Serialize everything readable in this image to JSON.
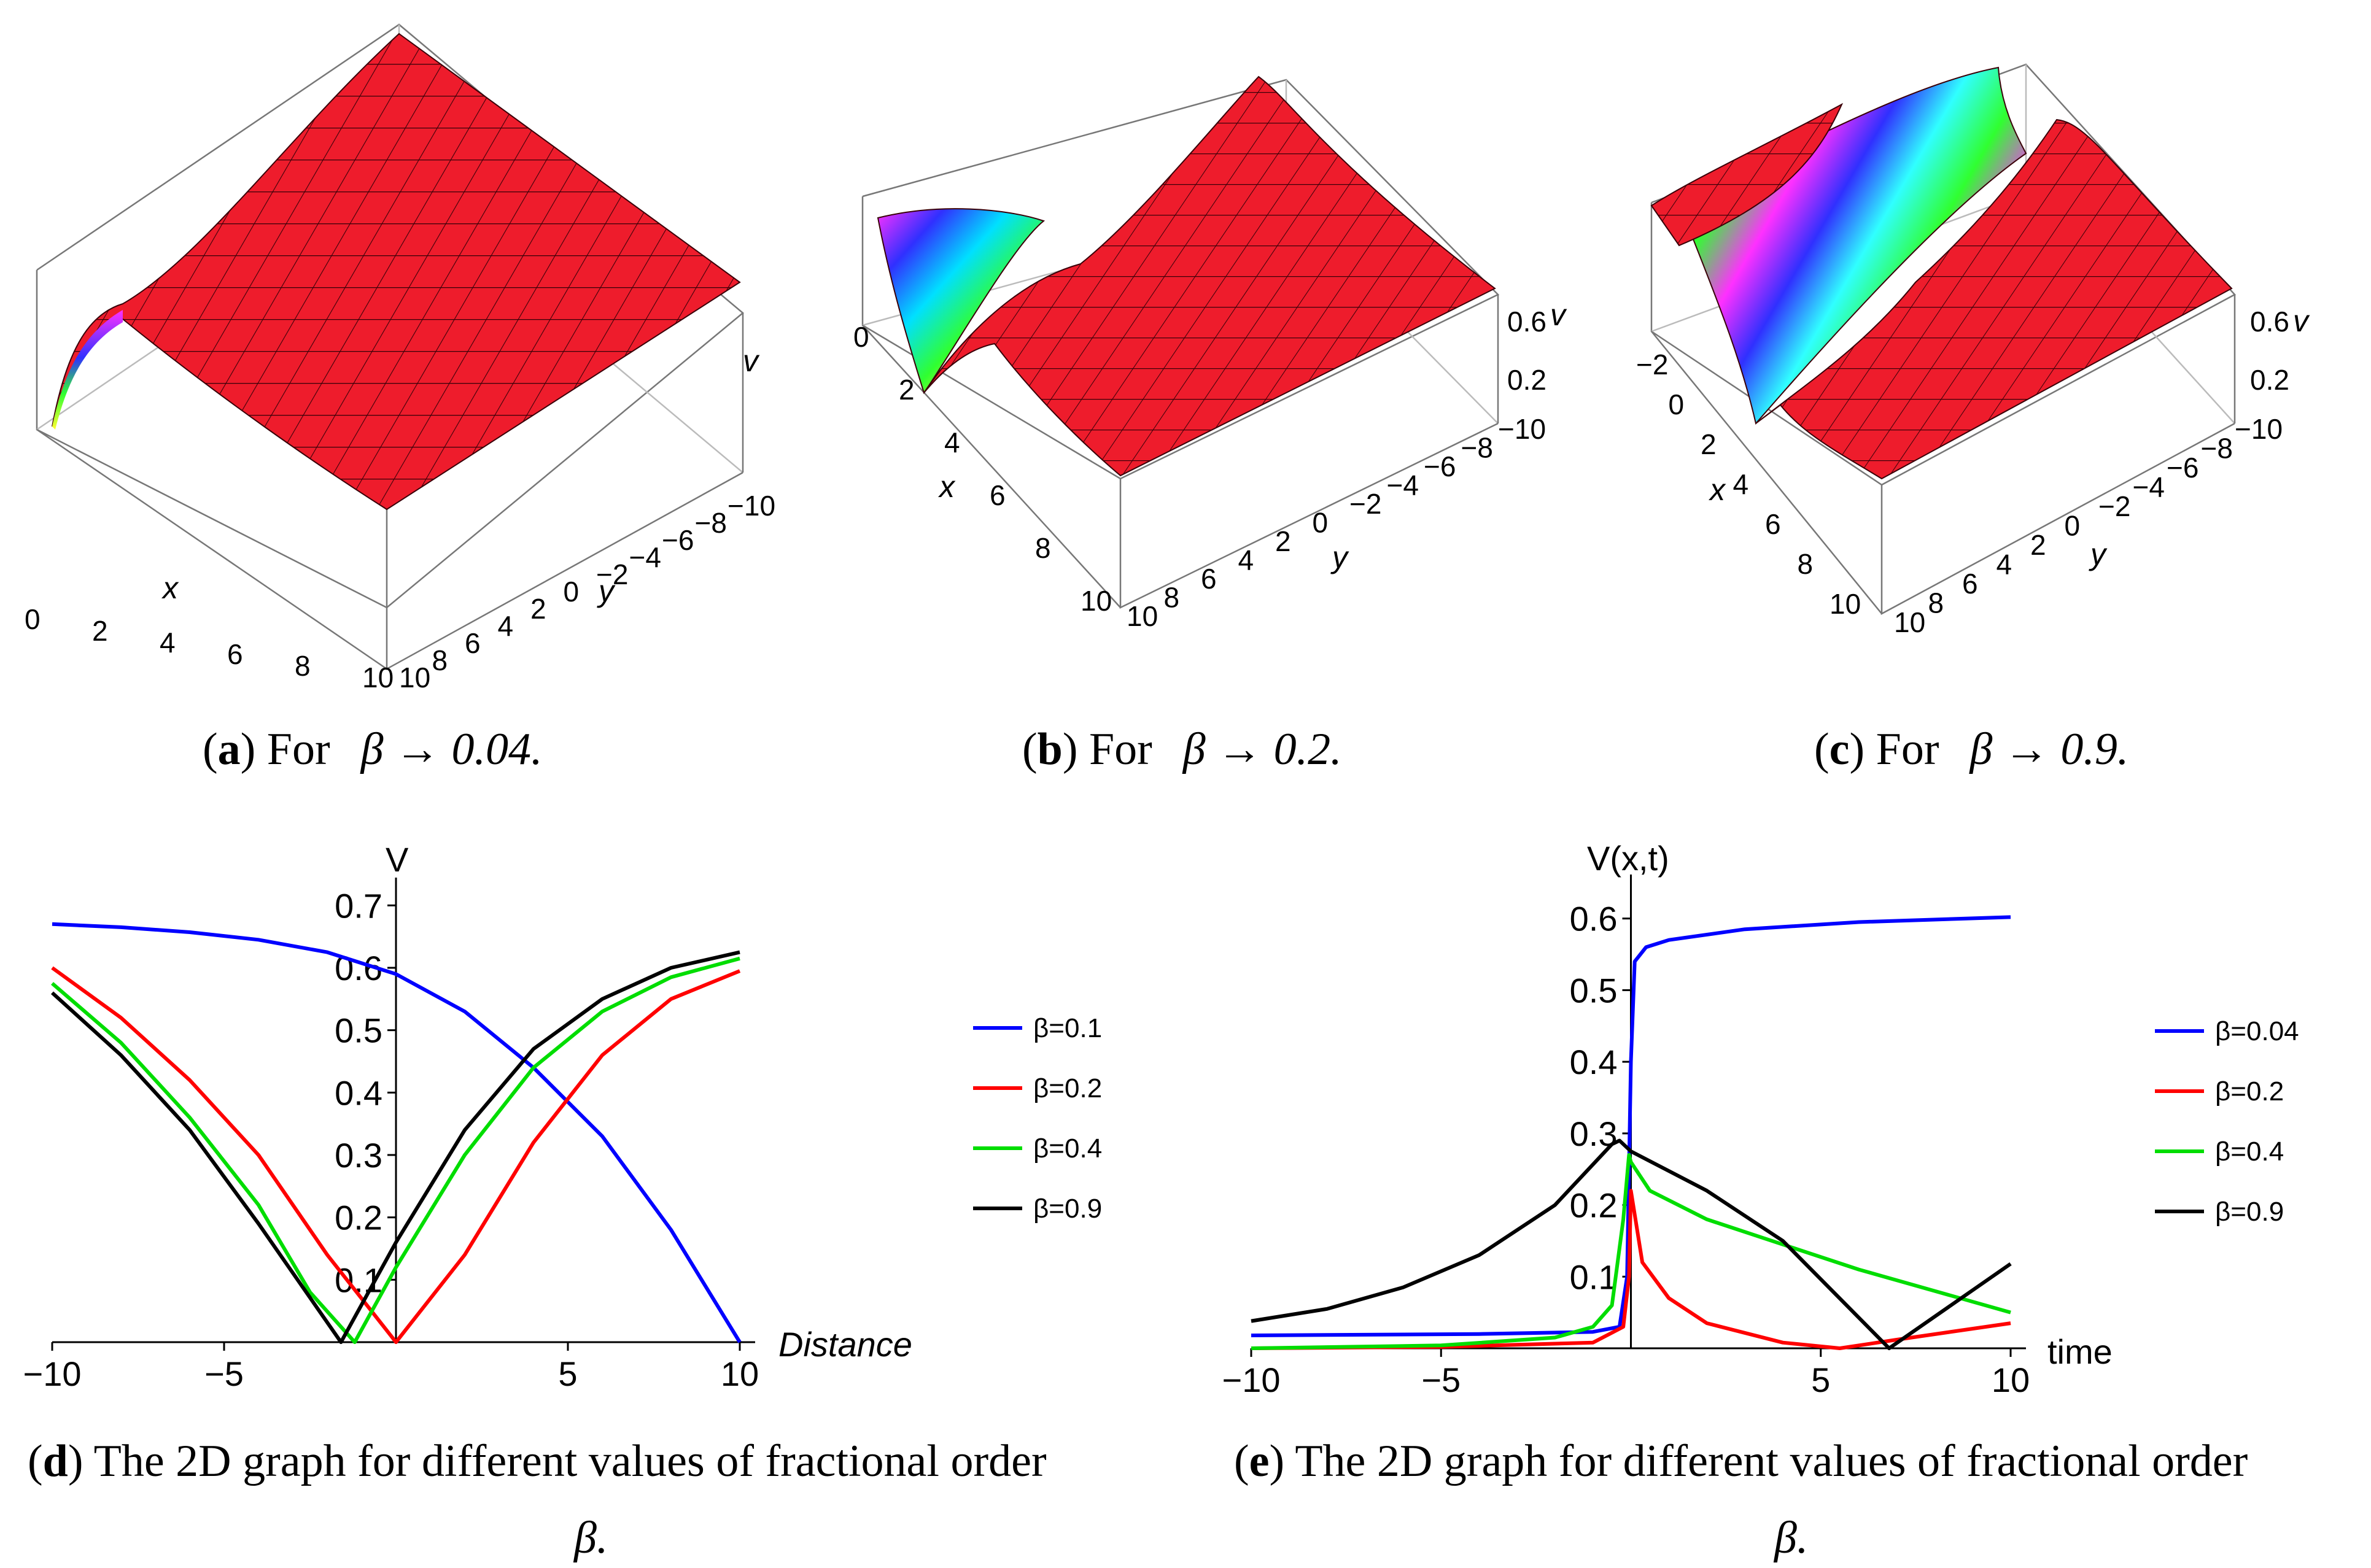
{
  "captions": {
    "a": {
      "letter": "a",
      "text": ") For",
      "expr": "β → 0.04."
    },
    "b": {
      "letter": "b",
      "text": ") For",
      "expr": "β → 0.2."
    },
    "c": {
      "letter": "c",
      "text": ") For",
      "expr": "β → 0.9."
    },
    "d": {
      "letter": "d",
      "text": ") The 2D graph for different values of fractional order",
      "tail": "β."
    },
    "e": {
      "letter": "e",
      "text": ") The 2D graph for different values of fractional order",
      "tail": "β."
    }
  },
  "surfaces": [
    {
      "panel": "a",
      "type": "surface3d",
      "beta": "0.04",
      "xlabel": "x",
      "ylabel": "y",
      "zlabel": "v",
      "x_ticks": [
        "0",
        "2",
        "4",
        "6",
        "8",
        "10"
      ],
      "y_ticks": [
        "10",
        "8",
        "6",
        "4",
        "2",
        "0",
        "−2",
        "−4",
        "−6",
        "−8",
        "−10"
      ],
      "z_ticks": []
    },
    {
      "panel": "b",
      "type": "surface3d",
      "beta": "0.2",
      "xlabel": "x",
      "ylabel": "y",
      "zlabel": "v",
      "x_ticks": [
        "0",
        "2",
        "4",
        "6",
        "8",
        "10"
      ],
      "y_ticks": [
        "10",
        "8",
        "6",
        "4",
        "2",
        "0",
        "−2",
        "−4",
        "−6",
        "−8",
        "−10"
      ],
      "z_ticks": [
        "0.2",
        "0.6"
      ]
    },
    {
      "panel": "c",
      "type": "surface3d",
      "beta": "0.9",
      "xlabel": "x",
      "ylabel": "y",
      "zlabel": "v",
      "x_ticks": [
        "−2",
        "0",
        "2",
        "4",
        "6",
        "8",
        "10"
      ],
      "y_ticks": [
        "10",
        "8",
        "6",
        "4",
        "2",
        "0",
        "−2",
        "−4",
        "−6",
        "−8",
        "−10"
      ],
      "z_ticks": [
        "0.2",
        "0.6"
      ]
    }
  ],
  "chart_data": [
    {
      "panel": "d",
      "type": "line",
      "xlabel": "Distance",
      "ylabel": "V",
      "xlim": [
        -10,
        10
      ],
      "ylim": [
        0,
        0.72
      ],
      "x_ticks": [
        -10,
        -5,
        5,
        10
      ],
      "x_tick_labels": [
        "−10",
        "−5",
        "5",
        "10"
      ],
      "y_ticks": [
        0.1,
        0.2,
        0.3,
        0.4,
        0.5,
        0.6,
        0.7
      ],
      "y_tick_labels": [
        "0.1",
        "0.2",
        "0.3",
        "0.4",
        "0.5",
        "0.6",
        "0.7"
      ],
      "legend_position": "right",
      "series": [
        {
          "name": "β=0.1",
          "color": "#0000ff",
          "points": [
            [
              -10,
              0.67
            ],
            [
              -8,
              0.665
            ],
            [
              -6,
              0.657
            ],
            [
              -4,
              0.645
            ],
            [
              -2,
              0.625
            ],
            [
              0,
              0.59
            ],
            [
              2,
              0.53
            ],
            [
              4,
              0.44
            ],
            [
              6,
              0.33
            ],
            [
              8,
              0.18
            ],
            [
              10,
              0.0
            ]
          ]
        },
        {
          "name": "β=0.2",
          "color": "#ff0000",
          "points": [
            [
              -10,
              0.6
            ],
            [
              -8,
              0.52
            ],
            [
              -6,
              0.42
            ],
            [
              -4,
              0.3
            ],
            [
              -2,
              0.14
            ],
            [
              0,
              0.0
            ],
            [
              2,
              0.14
            ],
            [
              4,
              0.32
            ],
            [
              6,
              0.46
            ],
            [
              8,
              0.55
            ],
            [
              10,
              0.595
            ]
          ]
        },
        {
          "name": "β=0.4",
          "color": "#00dd00",
          "points": [
            [
              -10,
              0.575
            ],
            [
              -8,
              0.48
            ],
            [
              -6,
              0.36
            ],
            [
              -4,
              0.22
            ],
            [
              -2.5,
              0.08
            ],
            [
              -1.2,
              0.0
            ],
            [
              0,
              0.12
            ],
            [
              2,
              0.3
            ],
            [
              4,
              0.44
            ],
            [
              6,
              0.53
            ],
            [
              8,
              0.585
            ],
            [
              10,
              0.615
            ]
          ]
        },
        {
          "name": "β=0.9",
          "color": "#000000",
          "points": [
            [
              -10,
              0.56
            ],
            [
              -8,
              0.46
            ],
            [
              -6,
              0.34
            ],
            [
              -4,
              0.19
            ],
            [
              -1.6,
              0.0
            ],
            [
              0,
              0.16
            ],
            [
              2,
              0.34
            ],
            [
              4,
              0.47
            ],
            [
              6,
              0.55
            ],
            [
              8,
              0.6
            ],
            [
              10,
              0.625
            ]
          ]
        }
      ]
    },
    {
      "panel": "e",
      "type": "line",
      "xlabel": "time",
      "ylabel": "V(x,t)",
      "xlim": [
        -10,
        10
      ],
      "ylim": [
        0,
        0.64
      ],
      "x_ticks": [
        -10,
        -5,
        5,
        10
      ],
      "x_tick_labels": [
        "−10",
        "−5",
        "5",
        "10"
      ],
      "y_ticks": [
        0.1,
        0.2,
        0.3,
        0.4,
        0.5,
        0.6
      ],
      "y_tick_labels": [
        "0.1",
        "0.2",
        "0.3",
        "0.4",
        "0.5",
        "0.6"
      ],
      "legend_position": "right",
      "series": [
        {
          "name": "β=0.04",
          "color": "#0000ff",
          "points": [
            [
              -10,
              0.018
            ],
            [
              -4,
              0.02
            ],
            [
              -1,
              0.023
            ],
            [
              -0.3,
              0.03
            ],
            [
              -0.1,
              0.1
            ],
            [
              0,
              0.4
            ],
            [
              0.1,
              0.54
            ],
            [
              0.4,
              0.56
            ],
            [
              1,
              0.57
            ],
            [
              3,
              0.585
            ],
            [
              6,
              0.595
            ],
            [
              10,
              0.602
            ]
          ]
        },
        {
          "name": "β=0.2",
          "color": "#ff0000",
          "points": [
            [
              -10,
              0.0
            ],
            [
              -5,
              0.002
            ],
            [
              -1,
              0.008
            ],
            [
              -0.2,
              0.03
            ],
            [
              -0.05,
              0.1
            ],
            [
              0,
              0.22
            ],
            [
              0.3,
              0.12
            ],
            [
              1,
              0.07
            ],
            [
              2,
              0.035
            ],
            [
              4,
              0.008
            ],
            [
              5.5,
              0.0
            ],
            [
              7,
              0.012
            ],
            [
              10,
              0.035
            ]
          ]
        },
        {
          "name": "β=0.4",
          "color": "#00dd00",
          "points": [
            [
              -10,
              0.0
            ],
            [
              -5,
              0.004
            ],
            [
              -2,
              0.015
            ],
            [
              -1,
              0.03
            ],
            [
              -0.5,
              0.06
            ],
            [
              -0.2,
              0.18
            ],
            [
              -0.05,
              0.27
            ],
            [
              0,
              0.26
            ],
            [
              0.5,
              0.22
            ],
            [
              2,
              0.18
            ],
            [
              4,
              0.145
            ],
            [
              6,
              0.11
            ],
            [
              8,
              0.08
            ],
            [
              10,
              0.05
            ]
          ]
        },
        {
          "name": "β=0.9",
          "color": "#000000",
          "points": [
            [
              -10,
              0.038
            ],
            [
              -8,
              0.055
            ],
            [
              -6,
              0.085
            ],
            [
              -4,
              0.13
            ],
            [
              -2,
              0.2
            ],
            [
              -0.5,
              0.285
            ],
            [
              -0.3,
              0.29
            ],
            [
              0,
              0.275
            ],
            [
              2,
              0.22
            ],
            [
              4,
              0.15
            ],
            [
              6.8,
              0.0
            ],
            [
              10,
              0.118
            ]
          ]
        }
      ]
    }
  ]
}
